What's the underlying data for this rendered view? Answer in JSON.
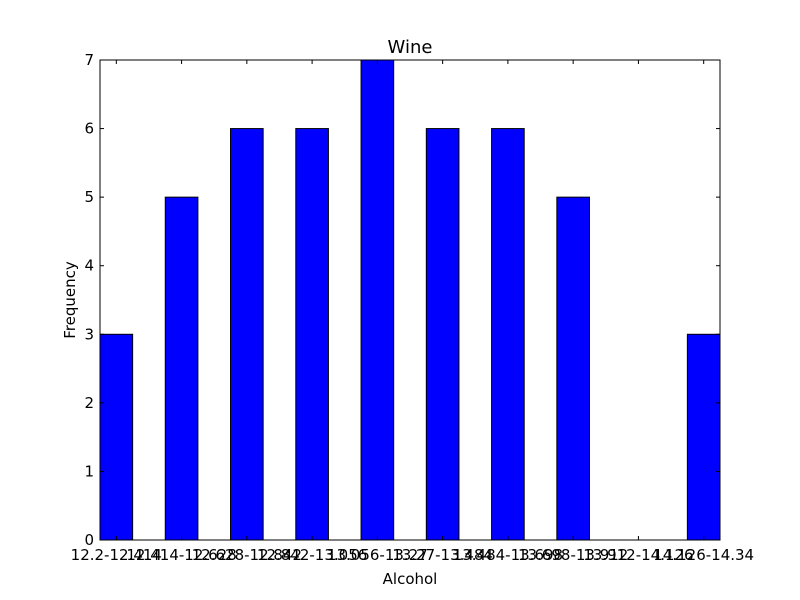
{
  "chart_data": {
    "type": "bar",
    "title": "Wine",
    "xlabel": "Alcohol",
    "ylabel": "Frequency",
    "categories": [
      "12.2-12.414",
      "12.414-12.628",
      "12.628-12.842",
      "12.842-13.056",
      "13.056-13.27",
      "13.27-13.484",
      "13.484-13.698",
      "13.698-13.912",
      "13.912-14.126",
      "14.126-14.34"
    ],
    "values": [
      3,
      5,
      6,
      6,
      7,
      6,
      6,
      5,
      0,
      3
    ],
    "ylim": [
      0,
      7
    ],
    "yticks": [
      0,
      1,
      2,
      3,
      4,
      5,
      6,
      7
    ],
    "bar_color": "#0000ff",
    "grid": false,
    "legend": false
  }
}
